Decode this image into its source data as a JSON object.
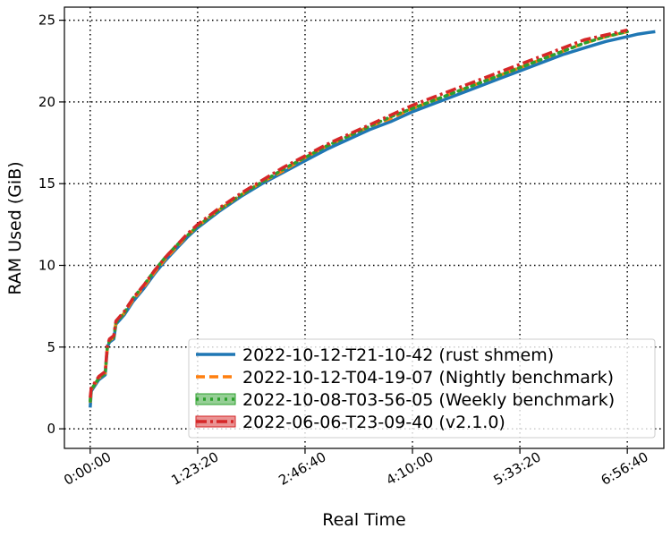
{
  "chart_data": {
    "type": "line",
    "title": "",
    "xlabel": "Real Time",
    "ylabel": "RAM Used (GiB)",
    "xlim": [
      -1200,
      26700
    ],
    "ylim": [
      -1.2,
      25.8
    ],
    "grid": true,
    "grid_style": "dotted",
    "legend_position": "lower-right",
    "x_ticks": [
      {
        "value": 0,
        "label": "0:00:00"
      },
      {
        "value": 5000,
        "label": "1:23:20"
      },
      {
        "value": 10000,
        "label": "2:46:40"
      },
      {
        "value": 15000,
        "label": "4:10:00"
      },
      {
        "value": 20000,
        "label": "5:33:20"
      },
      {
        "value": 25000,
        "label": "6:56:40"
      }
    ],
    "y_ticks": [
      {
        "value": 0,
        "label": "0"
      },
      {
        "value": 5,
        "label": "5"
      },
      {
        "value": 10,
        "label": "10"
      },
      {
        "value": 15,
        "label": "15"
      },
      {
        "value": 20,
        "label": "20"
      },
      {
        "value": 25,
        "label": "25"
      }
    ],
    "series": [
      {
        "name": "2022-10-12-T21-10-42 (rust shmem)",
        "color": "#1f77b4",
        "style": "solid",
        "x": [
          0,
          50,
          200,
          400,
          700,
          800,
          900,
          1100,
          1200,
          1400,
          1600,
          1800,
          2000,
          2500,
          3000,
          3500,
          4000,
          4500,
          5000,
          5500,
          6000,
          7000,
          8000,
          9000,
          10000,
          11000,
          12000,
          13000,
          14000,
          15000,
          16000,
          17000,
          18000,
          19000,
          20000,
          21000,
          22000,
          23000,
          24000,
          25000,
          25500,
          26000,
          26300
        ],
        "y": [
          1.3,
          2.3,
          2.6,
          3.0,
          3.3,
          5.0,
          5.3,
          5.5,
          6.4,
          6.7,
          7.0,
          7.4,
          7.8,
          8.6,
          9.5,
          10.3,
          11.0,
          11.7,
          12.3,
          12.8,
          13.3,
          14.2,
          15.0,
          15.7,
          16.4,
          17.1,
          17.7,
          18.3,
          18.8,
          19.4,
          19.9,
          20.4,
          20.9,
          21.4,
          21.9,
          22.4,
          22.9,
          23.3,
          23.7,
          24.0,
          24.15,
          24.25,
          24.3
        ]
      },
      {
        "name": "2022-10-12-T04-19-07 (Nightly benchmark)",
        "color": "#ff7f0e",
        "style": "dashed",
        "x": [
          0,
          50,
          200,
          400,
          700,
          800,
          900,
          1100,
          1200,
          1400,
          1600,
          1800,
          2000,
          2500,
          3000,
          3500,
          4000,
          4500,
          5000,
          5500,
          6000,
          7000,
          8000,
          9000,
          10000,
          11000,
          12000,
          13000,
          14000,
          15000,
          16000,
          17000,
          18000,
          19000,
          20000,
          21000,
          22000,
          23000,
          24000,
          25000
        ],
        "y": [
          1.6,
          2.4,
          2.7,
          3.1,
          3.4,
          5.0,
          5.4,
          5.6,
          6.5,
          6.8,
          7.1,
          7.5,
          7.9,
          8.7,
          9.6,
          10.4,
          11.1,
          11.8,
          12.4,
          12.9,
          13.4,
          14.3,
          15.1,
          15.8,
          16.6,
          17.3,
          17.9,
          18.5,
          19.0,
          19.6,
          20.1,
          20.6,
          21.1,
          21.6,
          22.1,
          22.6,
          23.1,
          23.6,
          24.0,
          24.3
        ]
      },
      {
        "name": "2022-10-08-T03-56-05 (Weekly benchmark)",
        "color": "#2ca02c",
        "style": "dotted",
        "x": [
          0,
          50,
          200,
          400,
          700,
          800,
          900,
          1100,
          1200,
          1400,
          1600,
          1800,
          2000,
          2500,
          3000,
          3500,
          4000,
          4500,
          5000,
          5500,
          6000,
          7000,
          8000,
          9000,
          10000,
          11000,
          12000,
          13000,
          14000,
          15000,
          16000,
          17000,
          18000,
          19000,
          20000,
          21000,
          22000,
          23000,
          24000,
          25000
        ],
        "y": [
          1.7,
          2.4,
          2.7,
          3.1,
          3.4,
          5.0,
          5.4,
          5.6,
          6.5,
          6.8,
          7.1,
          7.6,
          8.0,
          8.8,
          9.7,
          10.5,
          11.2,
          11.8,
          12.4,
          12.9,
          13.4,
          14.3,
          15.1,
          15.9,
          16.6,
          17.3,
          17.9,
          18.5,
          19.1,
          19.6,
          20.1,
          20.6,
          21.1,
          21.6,
          22.1,
          22.6,
          23.1,
          23.6,
          24.0,
          24.3
        ]
      },
      {
        "name": "2022-06-06-T23-09-40 (v2.1.0)",
        "color": "#d62728",
        "style": "dashdot",
        "x": [
          0,
          50,
          200,
          400,
          700,
          800,
          900,
          1100,
          1200,
          1400,
          1600,
          1800,
          2000,
          2500,
          3000,
          3500,
          4000,
          4500,
          5000,
          5500,
          6000,
          7000,
          8000,
          9000,
          10000,
          11000,
          12000,
          13000,
          14000,
          15000,
          16000,
          17000,
          18000,
          19000,
          20000,
          21000,
          22000,
          23000,
          24000,
          25000
        ],
        "y": [
          1.9,
          2.5,
          2.8,
          3.2,
          3.5,
          5.1,
          5.5,
          5.7,
          6.6,
          6.9,
          7.2,
          7.6,
          8.0,
          8.8,
          9.7,
          10.5,
          11.2,
          11.9,
          12.5,
          13.0,
          13.5,
          14.4,
          15.2,
          16.0,
          16.7,
          17.4,
          18.0,
          18.6,
          19.2,
          19.8,
          20.3,
          20.8,
          21.3,
          21.8,
          22.3,
          22.8,
          23.3,
          23.8,
          24.1,
          24.4
        ]
      }
    ]
  }
}
